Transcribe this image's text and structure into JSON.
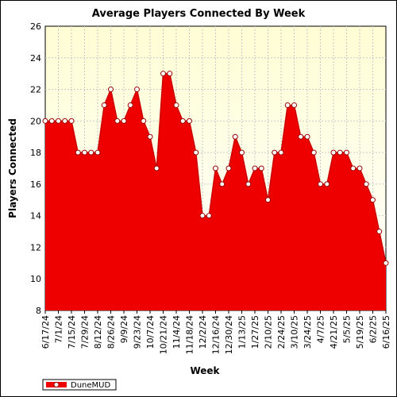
{
  "chart_data": {
    "type": "area",
    "title": "Average Players Connected By Week",
    "xlabel": "Week",
    "ylabel": "Players Connected",
    "ylim": [
      8,
      26
    ],
    "yticks": [
      8,
      10,
      12,
      14,
      16,
      18,
      20,
      22,
      24,
      26
    ],
    "grid": true,
    "legend_position": "bottom-left",
    "colors": {
      "fill": "#ee0000",
      "line": "#cc0000",
      "marker_fill": "#ffffff",
      "marker_edge": "#990000",
      "plot_bg_top": "#fefdd4",
      "plot_bg_bottom": "#ffffff"
    },
    "x_tick_labels": [
      "6/17/24",
      "7/1/24",
      "7/15/24",
      "7/29/24",
      "8/12/24",
      "8/26/24",
      "9/9/24",
      "9/23/24",
      "10/7/24",
      "10/21/24",
      "11/4/24",
      "11/18/24",
      "12/2/24",
      "12/16/24",
      "12/30/24",
      "1/13/25",
      "1/27/25",
      "2/10/25",
      "2/24/25",
      "3/10/25",
      "3/24/25",
      "4/7/25",
      "4/21/25",
      "5/5/25",
      "5/19/25",
      "6/2/25",
      "6/16/25"
    ],
    "series": [
      {
        "name": "DuneMUD",
        "values": [
          20,
          20,
          20,
          20,
          20,
          18,
          18,
          18,
          18,
          21,
          22,
          20,
          20,
          21,
          22,
          20,
          19,
          17,
          23,
          23,
          21,
          20,
          20,
          18,
          14,
          14,
          17,
          16,
          17,
          19,
          18,
          16,
          17,
          17,
          15,
          18,
          18,
          21,
          21,
          19,
          19,
          18,
          16,
          16,
          18,
          18,
          18,
          17,
          17,
          16,
          15,
          13,
          11
        ]
      }
    ]
  }
}
